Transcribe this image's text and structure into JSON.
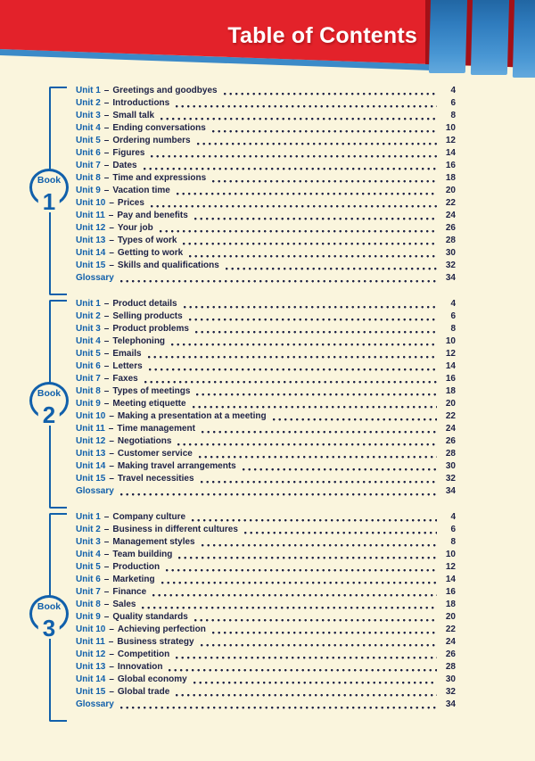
{
  "page": {
    "title": "Table of Contents",
    "separator": "–"
  },
  "colors": {
    "background_cream": "#faf5dd",
    "banner_red": "#e3222a",
    "banner_dark_red": "#a31117",
    "strip_blue": "#3b8ac8",
    "bar_blue_top": "#1f639f",
    "bar_blue_bottom": "#63a9dd",
    "accent_blue": "#1160ab",
    "text_dark_navy": "#1d2145",
    "title_white": "#ffffff"
  },
  "books": [
    {
      "badge_word": "Book",
      "badge_number": "1",
      "items": [
        {
          "label": "Unit 1",
          "title": "Greetings and goodbyes",
          "page": "4"
        },
        {
          "label": "Unit 2",
          "title": "Introductions",
          "page": "6"
        },
        {
          "label": "Unit 3",
          "title": "Small talk",
          "page": "8"
        },
        {
          "label": "Unit 4",
          "title": "Ending conversations",
          "page": "10"
        },
        {
          "label": "Unit 5",
          "title": "Ordering numbers",
          "page": "12"
        },
        {
          "label": "Unit 6",
          "title": "Figures",
          "page": "14"
        },
        {
          "label": "Unit 7",
          "title": "Dates",
          "page": "16"
        },
        {
          "label": "Unit 8",
          "title": "Time and expressions",
          "page": "18"
        },
        {
          "label": "Unit 9",
          "title": "Vacation time",
          "page": "20"
        },
        {
          "label": "Unit 10",
          "title": "Prices",
          "page": "22"
        },
        {
          "label": "Unit 11",
          "title": "Pay and benefits",
          "page": "24"
        },
        {
          "label": "Unit 12",
          "title": "Your job",
          "page": "26"
        },
        {
          "label": "Unit 13",
          "title": "Types of work",
          "page": "28"
        },
        {
          "label": "Unit 14",
          "title": "Getting to work",
          "page": "30"
        },
        {
          "label": "Unit 15",
          "title": "Skills and qualifications",
          "page": "32"
        },
        {
          "label": "Glossary",
          "title": "",
          "page": "34"
        }
      ]
    },
    {
      "badge_word": "Book",
      "badge_number": "2",
      "items": [
        {
          "label": "Unit 1",
          "title": "Product details",
          "page": "4"
        },
        {
          "label": "Unit 2",
          "title": "Selling products",
          "page": "6"
        },
        {
          "label": "Unit 3",
          "title": "Product problems",
          "page": "8"
        },
        {
          "label": "Unit 4",
          "title": "Telephoning",
          "page": "10"
        },
        {
          "label": "Unit 5",
          "title": "Emails",
          "page": "12"
        },
        {
          "label": "Unit 6",
          "title": "Letters",
          "page": "14"
        },
        {
          "label": "Unit 7",
          "title": "Faxes",
          "page": "16"
        },
        {
          "label": "Unit 8",
          "title": "Types of meetings",
          "page": "18"
        },
        {
          "label": "Unit 9",
          "title": "Meeting etiquette",
          "page": "20"
        },
        {
          "label": "Unit 10",
          "title": "Making a presentation at a meeting",
          "page": "22"
        },
        {
          "label": "Unit 11",
          "title": "Time management",
          "page": "24"
        },
        {
          "label": "Unit 12",
          "title": "Negotiations",
          "page": "26"
        },
        {
          "label": "Unit 13",
          "title": "Customer service",
          "page": "28"
        },
        {
          "label": "Unit 14",
          "title": "Making travel arrangements",
          "page": "30"
        },
        {
          "label": "Unit 15",
          "title": "Travel necessities",
          "page": "32"
        },
        {
          "label": "Glossary",
          "title": "",
          "page": "34"
        }
      ]
    },
    {
      "badge_word": "Book",
      "badge_number": "3",
      "items": [
        {
          "label": "Unit 1",
          "title": "Company culture",
          "page": "4"
        },
        {
          "label": "Unit 2",
          "title": "Business in different cultures",
          "page": "6"
        },
        {
          "label": "Unit 3",
          "title": "Management styles",
          "page": "8"
        },
        {
          "label": "Unit 4",
          "title": "Team building",
          "page": "10"
        },
        {
          "label": "Unit 5",
          "title": "Production",
          "page": "12"
        },
        {
          "label": "Unit 6",
          "title": "Marketing",
          "page": "14"
        },
        {
          "label": "Unit 7",
          "title": "Finance",
          "page": "16"
        },
        {
          "label": "Unit 8",
          "title": "Sales",
          "page": "18"
        },
        {
          "label": "Unit 9",
          "title": "Quality standards",
          "page": "20"
        },
        {
          "label": "Unit 10",
          "title": "Achieving perfection",
          "page": "22"
        },
        {
          "label": "Unit 11",
          "title": "Business strategy",
          "page": "24"
        },
        {
          "label": "Unit 12",
          "title": "Competition",
          "page": "26"
        },
        {
          "label": "Unit 13",
          "title": "Innovation",
          "page": "28"
        },
        {
          "label": "Unit 14",
          "title": "Global economy",
          "page": "30"
        },
        {
          "label": "Unit 15",
          "title": "Global trade",
          "page": "32"
        },
        {
          "label": "Glossary",
          "title": "",
          "page": "34"
        }
      ]
    }
  ]
}
